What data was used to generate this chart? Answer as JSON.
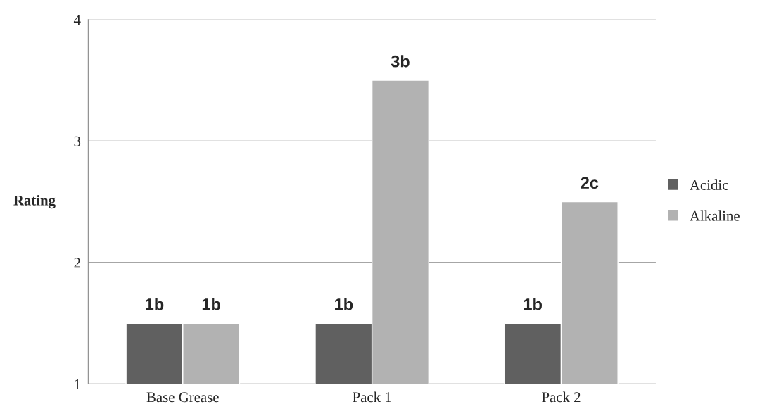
{
  "chart_data": {
    "type": "bar",
    "ylabel": "Rating",
    "categories": [
      "Base Grease",
      "Pack 1",
      "Pack 2"
    ],
    "series": [
      {
        "name": "Acidic",
        "color": "#606060",
        "values": [
          1.5,
          1.5,
          1.5
        ],
        "value_labels": [
          "1b",
          "1b",
          "1b"
        ]
      },
      {
        "name": "Alkaline",
        "color": "#b2b2b2",
        "values": [
          1.5,
          3.5,
          2.5
        ],
        "value_labels": [
          "1b",
          "3b",
          "2c"
        ]
      }
    ],
    "ylim": [
      1,
      4
    ],
    "yticks": [
      1,
      2,
      3,
      4
    ],
    "grid": "y",
    "legend": "right"
  }
}
